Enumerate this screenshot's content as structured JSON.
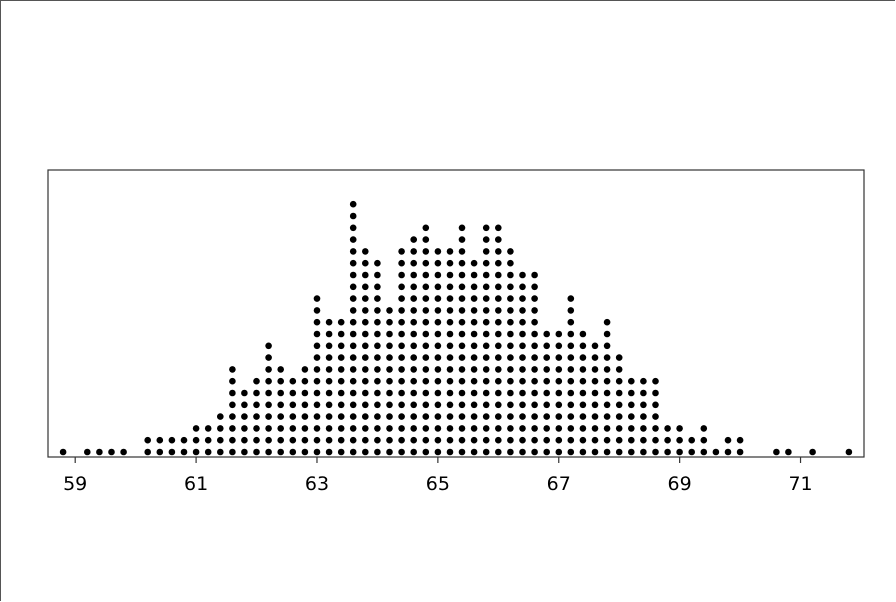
{
  "chart_data": {
    "type": "dotplot",
    "title": "",
    "xlabel": "",
    "ylabel": "",
    "xlim": [
      58.55,
      72.05
    ],
    "x_ticks": [
      59,
      61,
      63,
      65,
      67,
      69,
      71
    ],
    "x_tick_labels": [
      "59",
      "61",
      "63",
      "65",
      "67",
      "69",
      "71"
    ],
    "grid": false,
    "dot_color": "#000000",
    "bin_width": 0.2,
    "stacks": [
      {
        "x": 58.8,
        "count": 1
      },
      {
        "x": 59.2,
        "count": 1
      },
      {
        "x": 59.4,
        "count": 1
      },
      {
        "x": 59.6,
        "count": 1
      },
      {
        "x": 59.8,
        "count": 1
      },
      {
        "x": 60.2,
        "count": 2
      },
      {
        "x": 60.4,
        "count": 2
      },
      {
        "x": 60.6,
        "count": 2
      },
      {
        "x": 60.8,
        "count": 2
      },
      {
        "x": 61.0,
        "count": 3
      },
      {
        "x": 61.2,
        "count": 3
      },
      {
        "x": 61.4,
        "count": 4
      },
      {
        "x": 61.6,
        "count": 8
      },
      {
        "x": 61.8,
        "count": 6
      },
      {
        "x": 62.0,
        "count": 7
      },
      {
        "x": 62.2,
        "count": 10
      },
      {
        "x": 62.4,
        "count": 8
      },
      {
        "x": 62.6,
        "count": 7
      },
      {
        "x": 62.8,
        "count": 8
      },
      {
        "x": 63.0,
        "count": 14
      },
      {
        "x": 63.2,
        "count": 12
      },
      {
        "x": 63.4,
        "count": 12
      },
      {
        "x": 63.6,
        "count": 22
      },
      {
        "x": 63.8,
        "count": 18
      },
      {
        "x": 64.0,
        "count": 17
      },
      {
        "x": 64.2,
        "count": 13
      },
      {
        "x": 64.4,
        "count": 18
      },
      {
        "x": 64.6,
        "count": 19
      },
      {
        "x": 64.8,
        "count": 20
      },
      {
        "x": 65.0,
        "count": 18
      },
      {
        "x": 65.2,
        "count": 18
      },
      {
        "x": 65.4,
        "count": 20
      },
      {
        "x": 65.6,
        "count": 17
      },
      {
        "x": 65.8,
        "count": 20
      },
      {
        "x": 66.0,
        "count": 20
      },
      {
        "x": 66.2,
        "count": 18
      },
      {
        "x": 66.4,
        "count": 16
      },
      {
        "x": 66.6,
        "count": 16
      },
      {
        "x": 66.8,
        "count": 11
      },
      {
        "x": 67.0,
        "count": 11
      },
      {
        "x": 67.2,
        "count": 14
      },
      {
        "x": 67.4,
        "count": 11
      },
      {
        "x": 67.6,
        "count": 10
      },
      {
        "x": 67.8,
        "count": 12
      },
      {
        "x": 68.0,
        "count": 9
      },
      {
        "x": 68.2,
        "count": 7
      },
      {
        "x": 68.4,
        "count": 7
      },
      {
        "x": 68.6,
        "count": 7
      },
      {
        "x": 68.8,
        "count": 3
      },
      {
        "x": 69.0,
        "count": 3
      },
      {
        "x": 69.2,
        "count": 2
      },
      {
        "x": 69.4,
        "count": 3
      },
      {
        "x": 69.6,
        "count": 1
      },
      {
        "x": 69.8,
        "count": 2
      },
      {
        "x": 70.0,
        "count": 2
      },
      {
        "x": 70.6,
        "count": 1
      },
      {
        "x": 70.8,
        "count": 1
      },
      {
        "x": 71.2,
        "count": 1
      },
      {
        "x": 71.8,
        "count": 1
      }
    ]
  }
}
